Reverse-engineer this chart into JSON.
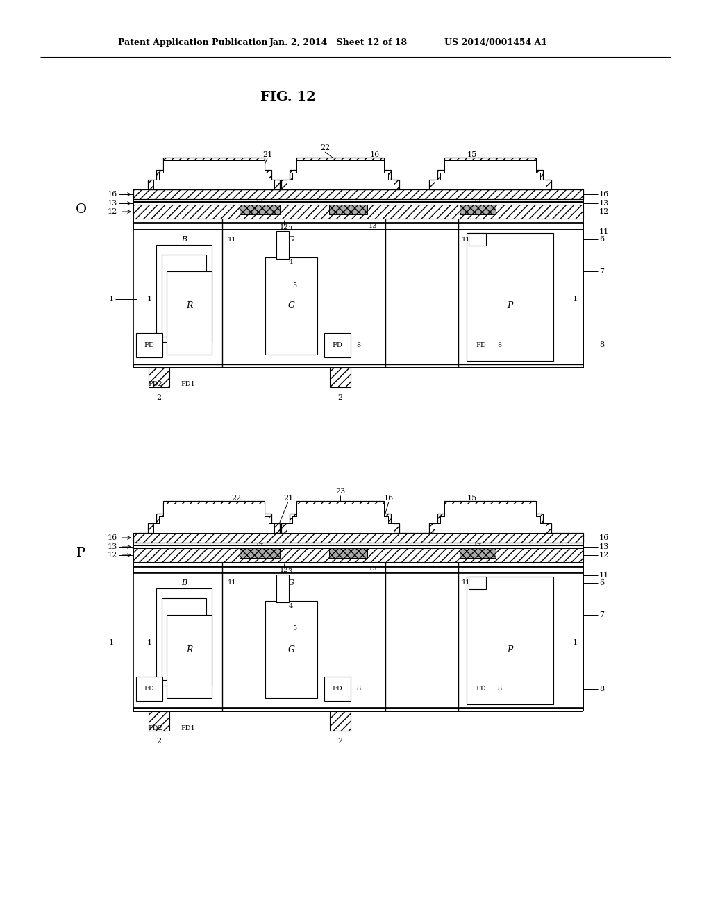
{
  "header_left": "Patent Application Publication",
  "header_mid": "Jan. 2, 2014   Sheet 12 of 18",
  "header_right": "US 2014/0001454 A1",
  "fig_title": "FIG. 12",
  "bg_color": "#ffffff",
  "diagram_O_label": "O",
  "diagram_P_label": "P"
}
